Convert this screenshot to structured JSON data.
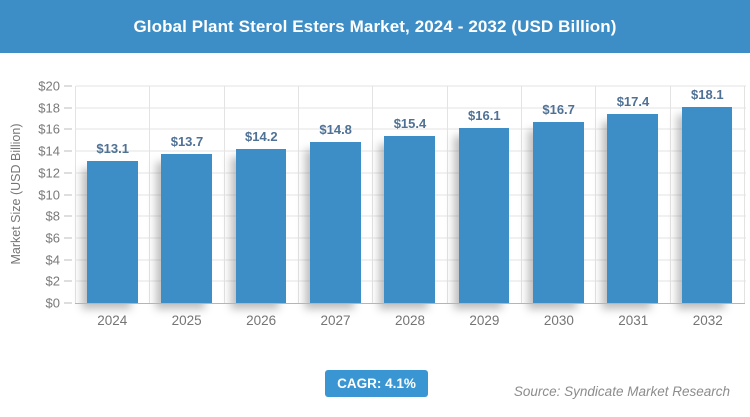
{
  "header": {
    "title": "Global Plant Sterol Esters Market, 2024 - 2032 (USD Billion)"
  },
  "chart_data": {
    "type": "bar",
    "title": "Global Plant Sterol Esters Market, 2024 - 2032 (USD Billion)",
    "categories": [
      "2024",
      "2025",
      "2026",
      "2027",
      "2028",
      "2029",
      "2030",
      "2031",
      "2032"
    ],
    "values": [
      13.1,
      13.7,
      14.2,
      14.8,
      15.4,
      16.1,
      16.7,
      17.4,
      18.1
    ],
    "value_labels": [
      "$13.1",
      "$13.7",
      "$14.2",
      "$14.8",
      "$15.4",
      "$16.1",
      "$16.7",
      "$17.4",
      "$18.1"
    ],
    "xlabel": "",
    "ylabel": "Market Size (USD Billion)",
    "ylim": [
      0,
      20
    ],
    "ytick_step": 2,
    "yticks": [
      "$0",
      "$2",
      "$4",
      "$6",
      "$8",
      "$10",
      "$12",
      "$14",
      "$16",
      "$18",
      "$20"
    ],
    "grid": "both",
    "legend": "none",
    "bar_color": "#3d8ec6"
  },
  "footer": {
    "cagr_label": "CAGR: 4.1%",
    "source": "Source: Syndicate Market Research"
  },
  "colors": {
    "header_bg": "#3d8ec6",
    "bar": "#3d8ec6",
    "badge_bg": "#3a96d2",
    "value_label_text": "#4f7195",
    "axis_text": "#7a7a7a",
    "gridline": "#e3e3e3",
    "axis_line": "#b5b5b5",
    "source_text": "#8c8c8c",
    "title_text": "#ffffff"
  }
}
